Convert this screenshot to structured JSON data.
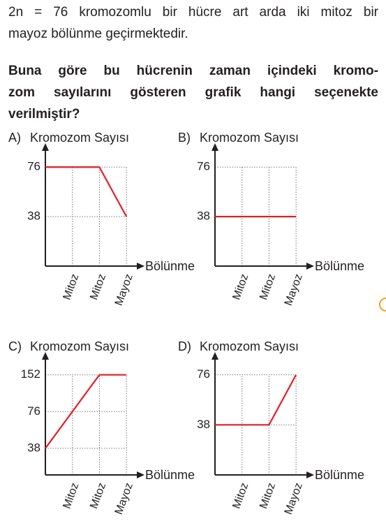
{
  "question": {
    "stem": [
      "2n = 76 kromozomlu bir hücre art arda iki mitoz bir",
      "mayoz bölünme geçirmektedir."
    ],
    "prompt": [
      "Buna göre bu hücrenin zaman içindeki kromo-",
      "zom sayılarını gösteren grafik hangi seçenekte",
      "verilmiştir?"
    ]
  },
  "chart_data": [
    {
      "type": "line",
      "label": "A)",
      "ylabel": "Kromozom Sayısı",
      "xlabel": "Bölünme",
      "color": "#e31e24",
      "x": [
        0,
        1,
        2,
        3
      ],
      "values": [
        76,
        76,
        76,
        38
      ],
      "xlim": [
        0,
        3.5
      ],
      "xticks": [
        {
          "value": 1,
          "label": "Mitoz"
        },
        {
          "value": 2,
          "label": "Mitoz"
        },
        {
          "value": 3,
          "label": "Mayoz"
        }
      ],
      "ylim": [
        0,
        89
      ],
      "yticks": [
        38,
        76
      ],
      "yscale": "linear",
      "grid": true
    },
    {
      "type": "line",
      "label": "B)",
      "ylabel": "Kromozom Sayısı",
      "xlabel": "Bölünme",
      "color": "#e31e24",
      "x": [
        0,
        1,
        2,
        3
      ],
      "values": [
        38,
        38,
        38,
        38
      ],
      "xlim": [
        0,
        3.5
      ],
      "xticks": [
        {
          "value": 1,
          "label": "Mitoz"
        },
        {
          "value": 2,
          "label": "Mitoz"
        },
        {
          "value": 3,
          "label": "Mayoz"
        }
      ],
      "ylim": [
        0,
        89
      ],
      "yticks": [
        38,
        76
      ],
      "yscale": "linear",
      "grid": true
    },
    {
      "type": "line",
      "label": "C)",
      "ylabel": "Kromozom Sayısı",
      "xlabel": "Bölünme",
      "color": "#e31e24",
      "x": [
        0,
        1,
        2,
        3
      ],
      "values": [
        38,
        76,
        152,
        152
      ],
      "xlim": [
        0,
        3.5
      ],
      "xticks": [
        {
          "value": 1,
          "label": "Mitoz"
        },
        {
          "value": 2,
          "label": "Mitoz"
        },
        {
          "value": 3,
          "label": "Mayoz"
        }
      ],
      "ylim": [
        23,
        205
      ],
      "yticks": [
        38,
        76,
        152
      ],
      "yscale": "log",
      "grid": true
    },
    {
      "type": "line",
      "label": "D)",
      "ylabel": "Kromozom Sayısı",
      "xlabel": "Bölünme",
      "color": "#e31e24",
      "x": [
        0,
        1,
        2,
        3
      ],
      "values": [
        38,
        38,
        38,
        76
      ],
      "xlim": [
        0,
        3.5
      ],
      "xticks": [
        {
          "value": 1,
          "label": "Mitoz"
        },
        {
          "value": 2,
          "label": "Mitoz"
        },
        {
          "value": 3,
          "label": "Mayoz"
        }
      ],
      "ylim": [
        0,
        88
      ],
      "yticks": [
        38,
        76
      ],
      "yscale": "linear",
      "grid": true
    }
  ]
}
